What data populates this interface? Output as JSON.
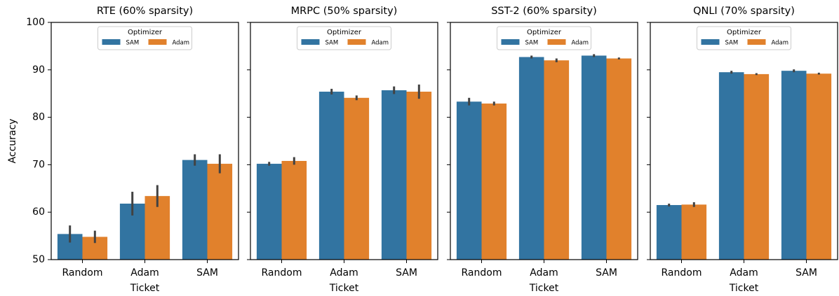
{
  "chart_data": [
    {
      "type": "bar",
      "title": "RTE (60% sparsity)",
      "xlabel": "Ticket",
      "ylabel": "Accuracy",
      "legend_title": "Optimizer",
      "categories": [
        "Random",
        "Adam",
        "SAM"
      ],
      "ylim": [
        50,
        100
      ],
      "yticks": [
        50,
        60,
        70,
        80,
        90,
        100
      ],
      "series": [
        {
          "name": "SAM",
          "color": "#3274a1",
          "values": [
            55.4,
            61.8,
            71.0
          ],
          "errors": [
            1.8,
            2.5,
            1.2
          ]
        },
        {
          "name": "Adam",
          "color": "#e1812c",
          "values": [
            54.8,
            63.4,
            70.2
          ],
          "errors": [
            1.3,
            2.3,
            2.0
          ]
        }
      ]
    },
    {
      "type": "bar",
      "title": "MRPC (50% sparsity)",
      "xlabel": "Ticket",
      "legend_title": "Optimizer",
      "categories": [
        "Random",
        "Adam",
        "SAM"
      ],
      "ylim": [
        50,
        100
      ],
      "yticks": [
        50,
        60,
        70,
        80,
        90,
        100
      ],
      "series": [
        {
          "name": "SAM",
          "color": "#3274a1",
          "values": [
            70.2,
            85.4,
            85.7
          ],
          "errors": [
            0.4,
            0.6,
            0.8
          ]
        },
        {
          "name": "Adam",
          "color": "#e1812c",
          "values": [
            70.8,
            84.1,
            85.4
          ],
          "errors": [
            0.8,
            0.5,
            1.5
          ]
        }
      ]
    },
    {
      "type": "bar",
      "title": "SST-2 (60% sparsity)",
      "xlabel": "Ticket",
      "legend_title": "Optimizer",
      "categories": [
        "Random",
        "Adam",
        "SAM"
      ],
      "ylim": [
        50,
        100
      ],
      "yticks": [
        50,
        60,
        70,
        80,
        90,
        100
      ],
      "series": [
        {
          "name": "SAM",
          "color": "#3274a1",
          "values": [
            83.3,
            92.7,
            93.0
          ],
          "errors": [
            0.8,
            0.3,
            0.3
          ]
        },
        {
          "name": "Adam",
          "color": "#e1812c",
          "values": [
            82.9,
            92.0,
            92.4
          ],
          "errors": [
            0.4,
            0.4,
            0.2
          ]
        }
      ]
    },
    {
      "type": "bar",
      "title": "QNLI (70% sparsity)",
      "xlabel": "Ticket",
      "legend_title": "Optimizer",
      "categories": [
        "Random",
        "Adam",
        "SAM"
      ],
      "ylim": [
        50,
        100
      ],
      "yticks": [
        50,
        60,
        70,
        80,
        90,
        100
      ],
      "series": [
        {
          "name": "SAM",
          "color": "#3274a1",
          "values": [
            61.5,
            89.5,
            89.8
          ],
          "errors": [
            0.3,
            0.3,
            0.3
          ]
        },
        {
          "name": "Adam",
          "color": "#e1812c",
          "values": [
            61.6,
            89.1,
            89.2
          ],
          "errors": [
            0.5,
            0.2,
            0.2
          ]
        }
      ]
    }
  ]
}
